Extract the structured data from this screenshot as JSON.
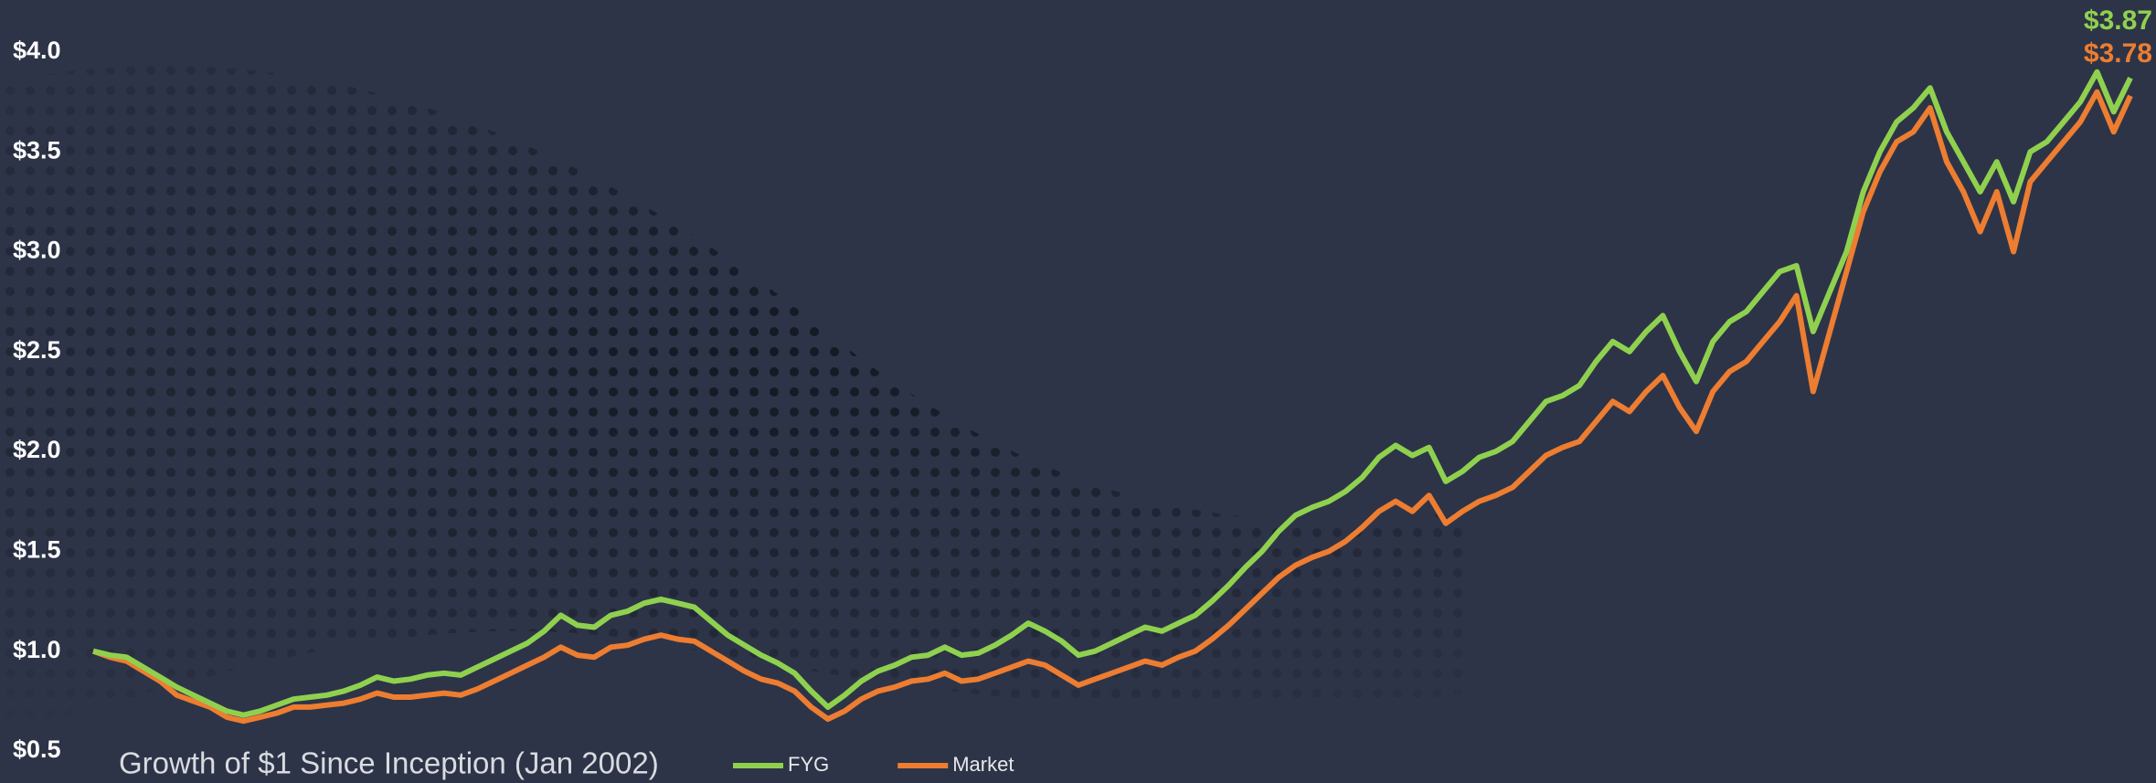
{
  "chart_data": {
    "type": "line",
    "title": "Growth of $1 Since Inception (Jan 2002)",
    "ylim": [
      0.34,
      4.26
    ],
    "yticks": [
      {
        "value": 0.5,
        "label": "$0.5"
      },
      {
        "value": 1.0,
        "label": "$1.0"
      },
      {
        "value": 1.5,
        "label": "$1.5"
      },
      {
        "value": 2.0,
        "label": "$2.0"
      },
      {
        "value": 2.5,
        "label": "$2.5"
      },
      {
        "value": 3.0,
        "label": "$3.0"
      },
      {
        "value": 3.5,
        "label": "$3.5"
      },
      {
        "value": 4.0,
        "label": "$4.0"
      }
    ],
    "grid": false,
    "series": [
      {
        "name": "FYG",
        "color": "#8fd14f",
        "values": [
          1.0,
          0.98,
          0.97,
          0.92,
          0.87,
          0.82,
          0.78,
          0.74,
          0.7,
          0.68,
          0.7,
          0.73,
          0.76,
          0.77,
          0.78,
          0.8,
          0.83,
          0.87,
          0.85,
          0.86,
          0.88,
          0.89,
          0.88,
          0.92,
          0.96,
          1.0,
          1.04,
          1.1,
          1.18,
          1.13,
          1.12,
          1.18,
          1.2,
          1.24,
          1.26,
          1.24,
          1.22,
          1.15,
          1.08,
          1.03,
          0.98,
          0.94,
          0.89,
          0.8,
          0.72,
          0.78,
          0.85,
          0.9,
          0.93,
          0.97,
          0.98,
          1.02,
          0.98,
          0.99,
          1.03,
          1.08,
          1.14,
          1.1,
          1.05,
          0.98,
          1.0,
          1.04,
          1.08,
          1.12,
          1.1,
          1.14,
          1.18,
          1.25,
          1.33,
          1.42,
          1.5,
          1.6,
          1.68,
          1.72,
          1.75,
          1.8,
          1.87,
          1.97,
          2.03,
          1.98,
          2.02,
          1.85,
          1.9,
          1.97,
          2.0,
          2.05,
          2.15,
          2.25,
          2.28,
          2.33,
          2.45,
          2.55,
          2.5,
          2.6,
          2.68,
          2.5,
          2.35,
          2.55,
          2.65,
          2.7,
          2.8,
          2.9,
          2.93,
          2.6,
          2.8,
          3.0,
          3.3,
          3.5,
          3.65,
          3.72,
          3.82,
          3.6,
          3.45,
          3.3,
          3.45,
          3.25,
          3.5,
          3.55,
          3.65,
          3.75,
          3.9,
          3.7,
          3.87
        ],
        "value_labels": [
          null,
          null,
          null,
          null,
          null,
          null,
          null,
          null,
          null,
          null,
          null,
          null,
          null,
          null,
          null,
          null,
          null,
          null,
          null,
          null,
          null,
          null,
          null,
          null,
          null,
          null,
          null,
          null,
          null,
          null,
          null,
          null,
          null,
          null,
          null,
          null,
          null,
          null,
          null,
          null,
          null,
          null,
          null,
          null,
          null,
          null,
          null,
          null,
          null,
          null,
          null,
          null,
          null,
          null,
          null,
          null,
          null,
          null,
          null,
          null,
          null,
          null,
          null,
          null,
          null,
          null,
          null,
          null,
          null,
          null,
          null,
          null,
          null,
          null,
          null,
          null,
          null,
          null,
          null,
          null,
          null,
          null,
          null,
          null,
          null,
          null,
          null,
          null,
          null,
          null,
          null,
          null,
          null,
          null,
          null,
          null,
          null,
          null,
          null,
          null,
          null,
          null,
          null,
          null,
          null,
          null,
          null,
          null,
          null,
          null,
          null,
          null,
          null,
          null,
          null,
          null,
          null,
          null,
          null,
          null,
          null,
          null,
          "$3.87"
        ]
      },
      {
        "name": "Market",
        "color": "#ed7d31",
        "values": [
          1.0,
          0.97,
          0.95,
          0.9,
          0.85,
          0.78,
          0.75,
          0.72,
          0.67,
          0.65,
          0.67,
          0.69,
          0.72,
          0.72,
          0.73,
          0.74,
          0.76,
          0.79,
          0.77,
          0.77,
          0.78,
          0.79,
          0.78,
          0.81,
          0.85,
          0.89,
          0.93,
          0.97,
          1.02,
          0.98,
          0.97,
          1.02,
          1.03,
          1.06,
          1.08,
          1.06,
          1.05,
          1.0,
          0.95,
          0.9,
          0.86,
          0.84,
          0.8,
          0.72,
          0.66,
          0.7,
          0.76,
          0.8,
          0.82,
          0.85,
          0.86,
          0.89,
          0.85,
          0.86,
          0.89,
          0.92,
          0.95,
          0.93,
          0.88,
          0.83,
          0.86,
          0.89,
          0.92,
          0.95,
          0.93,
          0.97,
          1.0,
          1.06,
          1.13,
          1.21,
          1.29,
          1.37,
          1.43,
          1.47,
          1.5,
          1.55,
          1.62,
          1.7,
          1.75,
          1.7,
          1.78,
          1.64,
          1.7,
          1.75,
          1.78,
          1.82,
          1.9,
          1.98,
          2.02,
          2.05,
          2.15,
          2.25,
          2.2,
          2.3,
          2.38,
          2.22,
          2.1,
          2.3,
          2.4,
          2.45,
          2.55,
          2.65,
          2.78,
          2.3,
          2.6,
          2.9,
          3.2,
          3.4,
          3.55,
          3.6,
          3.72,
          3.45,
          3.3,
          3.1,
          3.3,
          3.0,
          3.35,
          3.45,
          3.55,
          3.65,
          3.8,
          3.6,
          3.78
        ],
        "value_labels": [
          null,
          null,
          null,
          null,
          null,
          null,
          null,
          null,
          null,
          null,
          null,
          null,
          null,
          null,
          null,
          null,
          null,
          null,
          null,
          null,
          null,
          null,
          null,
          null,
          null,
          null,
          null,
          null,
          null,
          null,
          null,
          null,
          null,
          null,
          null,
          null,
          null,
          null,
          null,
          null,
          null,
          null,
          null,
          null,
          null,
          null,
          null,
          null,
          null,
          null,
          null,
          null,
          null,
          null,
          null,
          null,
          null,
          null,
          null,
          null,
          null,
          null,
          null,
          null,
          null,
          null,
          null,
          null,
          null,
          null,
          null,
          null,
          null,
          null,
          null,
          null,
          null,
          null,
          null,
          null,
          null,
          null,
          null,
          null,
          null,
          null,
          null,
          null,
          null,
          null,
          null,
          null,
          null,
          null,
          null,
          null,
          null,
          null,
          null,
          null,
          null,
          null,
          null,
          null,
          null,
          null,
          null,
          null,
          null,
          null,
          null,
          null,
          null,
          null,
          null,
          null,
          null,
          null,
          null,
          null,
          null,
          null,
          "$3.78"
        ]
      }
    ]
  }
}
